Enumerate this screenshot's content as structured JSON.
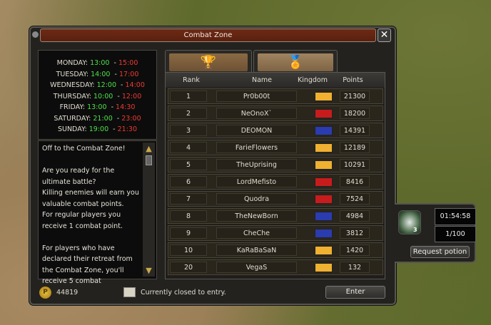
{
  "window": {
    "title": "Combat Zone",
    "close_icon": "close-icon"
  },
  "schedule": [
    {
      "day": "MONDAY:",
      "start": "13:00",
      "end": "15:00"
    },
    {
      "day": "TUESDAY:",
      "start": "14:00",
      "end": "17:00"
    },
    {
      "day": "WEDNESDAY:",
      "start": "12:00",
      "end": "14:00"
    },
    {
      "day": "THURSDAY:",
      "start": "10:00",
      "end": "12:00"
    },
    {
      "day": "FRIDAY:",
      "start": "13:00",
      "end": "14:30"
    },
    {
      "day": "SATURDAY:",
      "start": "21:00",
      "end": "23:00"
    },
    {
      "day": "SUNDAY:",
      "start": "19:00",
      "end": "21:30"
    }
  ],
  "info_lines": [
    "Off to the Combat Zone!",
    "",
    "Are you ready for the ultimate battle?",
    "Killing enemies will earn you valuable combat points.",
    "For regular players you receive 1 combat point.",
    "",
    "For players who have declared their retreat from the Combat Zone, you'll receive 5 combat"
  ],
  "tabs": [
    {
      "icon": "trophy-icon",
      "active": false
    },
    {
      "icon": "medal-icon",
      "active": true
    }
  ],
  "table": {
    "headers": [
      "Rank",
      "Name",
      "Kingdom",
      "Points"
    ],
    "rows": [
      {
        "rank": "1",
        "name": "Pr0b00t",
        "kingdom": "gold",
        "points": "21300"
      },
      {
        "rank": "2",
        "name": "NeOnoX`",
        "kingdom": "red",
        "points": "18200"
      },
      {
        "rank": "3",
        "name": "DEOMON",
        "kingdom": "blue",
        "points": "14391"
      },
      {
        "rank": "4",
        "name": "FarieFlowers",
        "kingdom": "gold",
        "points": "12189"
      },
      {
        "rank": "5",
        "name": "TheUprising",
        "kingdom": "gold",
        "points": "10291"
      },
      {
        "rank": "6",
        "name": "LordMefisto",
        "kingdom": "red",
        "points": "8416"
      },
      {
        "rank": "7",
        "name": "Quodra",
        "kingdom": "red",
        "points": "7524"
      },
      {
        "rank": "8",
        "name": "TheNewBorn",
        "kingdom": "blue",
        "points": "4984"
      },
      {
        "rank": "9",
        "name": "CheChe",
        "kingdom": "blue",
        "points": "3812"
      },
      {
        "rank": "10",
        "name": "KaRaBaSaN",
        "kingdom": "gold",
        "points": "1420"
      },
      {
        "rank": "20",
        "name": "VegaS",
        "kingdom": "gold",
        "points": "132"
      }
    ]
  },
  "kingdom_colors": {
    "gold": "#f0b030",
    "red": "#c81c1c",
    "blue": "#2a3cb0"
  },
  "footer": {
    "coins": "44819",
    "status": "Currently closed to entry.",
    "enter_label": "Enter"
  },
  "potion": {
    "count_badge": "3",
    "timer": "01:54:58",
    "quota": "1/100",
    "request_label": "Request potion"
  }
}
